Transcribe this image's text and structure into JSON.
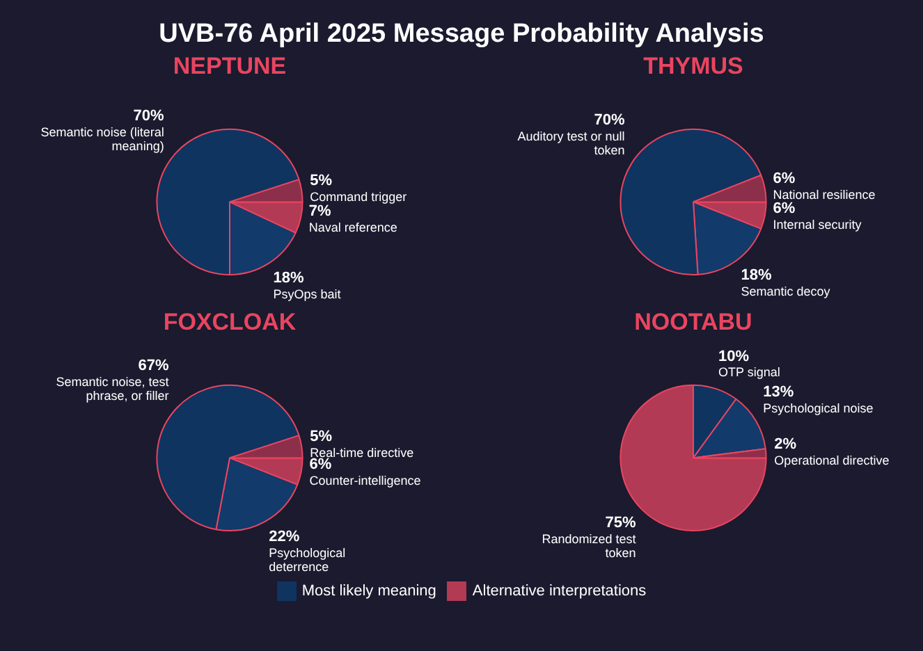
{
  "chart_data": [
    {
      "type": "other",
      "title": "UVB-76 April 2025 Message Probability Analysis",
      "annotations": [
        "Most likely meaning",
        "Alternative interpretations"
      ],
      "colors": [
        "#0f3460",
        "#b23a55"
      ]
    },
    {
      "type": "pie",
      "title": "NEPTUNE",
      "categories": [
        "Naval reference",
        "PsyOps bait",
        "Semantic noise (literal meaning)",
        "Command trigger"
      ],
      "values": [
        7,
        18,
        70,
        5
      ],
      "value_labels": [
        "7%",
        "18%",
        "70%",
        "5%"
      ],
      "colors": [
        "#b23a55",
        "#123a6b",
        "#0f3460",
        "#8c2f4a"
      ]
    },
    {
      "type": "pie",
      "title": "THYMUS",
      "categories": [
        "Internal security",
        "Semantic decoy",
        "Auditory test or null token",
        "National resilience"
      ],
      "values": [
        6,
        18,
        70,
        6
      ],
      "value_labels": [
        "6%",
        "18%",
        "70%",
        "6%"
      ],
      "colors": [
        "#b23a55",
        "#123a6b",
        "#0f3460",
        "#8c2f4a"
      ]
    },
    {
      "type": "pie",
      "title": "FOXCLOAK",
      "categories": [
        "Counter-intelligence",
        "Psychological deterrence",
        "Semantic noise, test phrase, or filler",
        "Real-time directive"
      ],
      "values": [
        6,
        22,
        67,
        5
      ],
      "value_labels": [
        "6%",
        "22%",
        "67%",
        "5%"
      ],
      "colors": [
        "#b23a55",
        "#123a6b",
        "#0f3460",
        "#8c2f4a"
      ]
    },
    {
      "type": "pie",
      "title": "NOOTABU",
      "categories": [
        "Randomized test token",
        "OTP signal",
        "Psychological noise",
        "Operational directive"
      ],
      "values": [
        75,
        10,
        13,
        2
      ],
      "value_labels": [
        "75%",
        "10%",
        "13%",
        "2%"
      ],
      "colors": [
        "#b23a55",
        "#0f3460",
        "#123a6b",
        "#8c2f4a"
      ]
    }
  ]
}
